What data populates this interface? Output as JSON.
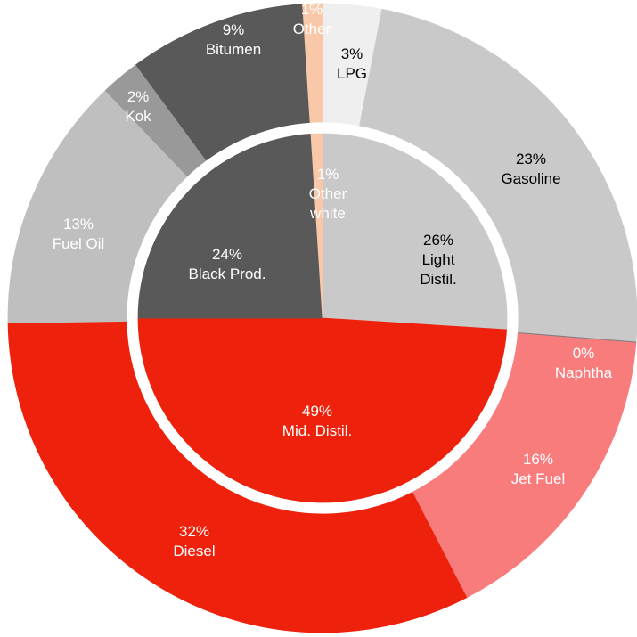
{
  "chart_data": {
    "type": "sunburst",
    "rings": [
      {
        "categories": [
          "Light Distil.",
          "Mid. Distil.",
          "Black Prod.",
          "Other white"
        ],
        "values": [
          26,
          49,
          24,
          1
        ],
        "value_labels": [
          "26%",
          "49%",
          "24%",
          "1%"
        ],
        "colors": [
          "#c9c9c9",
          "#ee220c",
          "#595959",
          "#f8c8a8"
        ]
      },
      {
        "categories": [
          "LPG",
          "Gasoline",
          "Naphtha",
          "Jet Fuel",
          "Diesel",
          "Fuel Oil",
          "Kok",
          "Bitumen",
          "Other"
        ],
        "values": [
          3,
          23,
          0,
          16,
          32,
          13,
          2,
          9,
          1
        ],
        "value_labels": [
          "3%",
          "23%",
          "0%",
          "16%",
          "32%",
          "13%",
          "2%",
          "9%",
          "1%"
        ],
        "colors": [
          "#efefef",
          "#c9c9c9",
          "#7f7f7f",
          "#f87c7c",
          "#ee220c",
          "#bfbfbf",
          "#999999",
          "#595959",
          "#f8c8a8"
        ]
      }
    ]
  }
}
